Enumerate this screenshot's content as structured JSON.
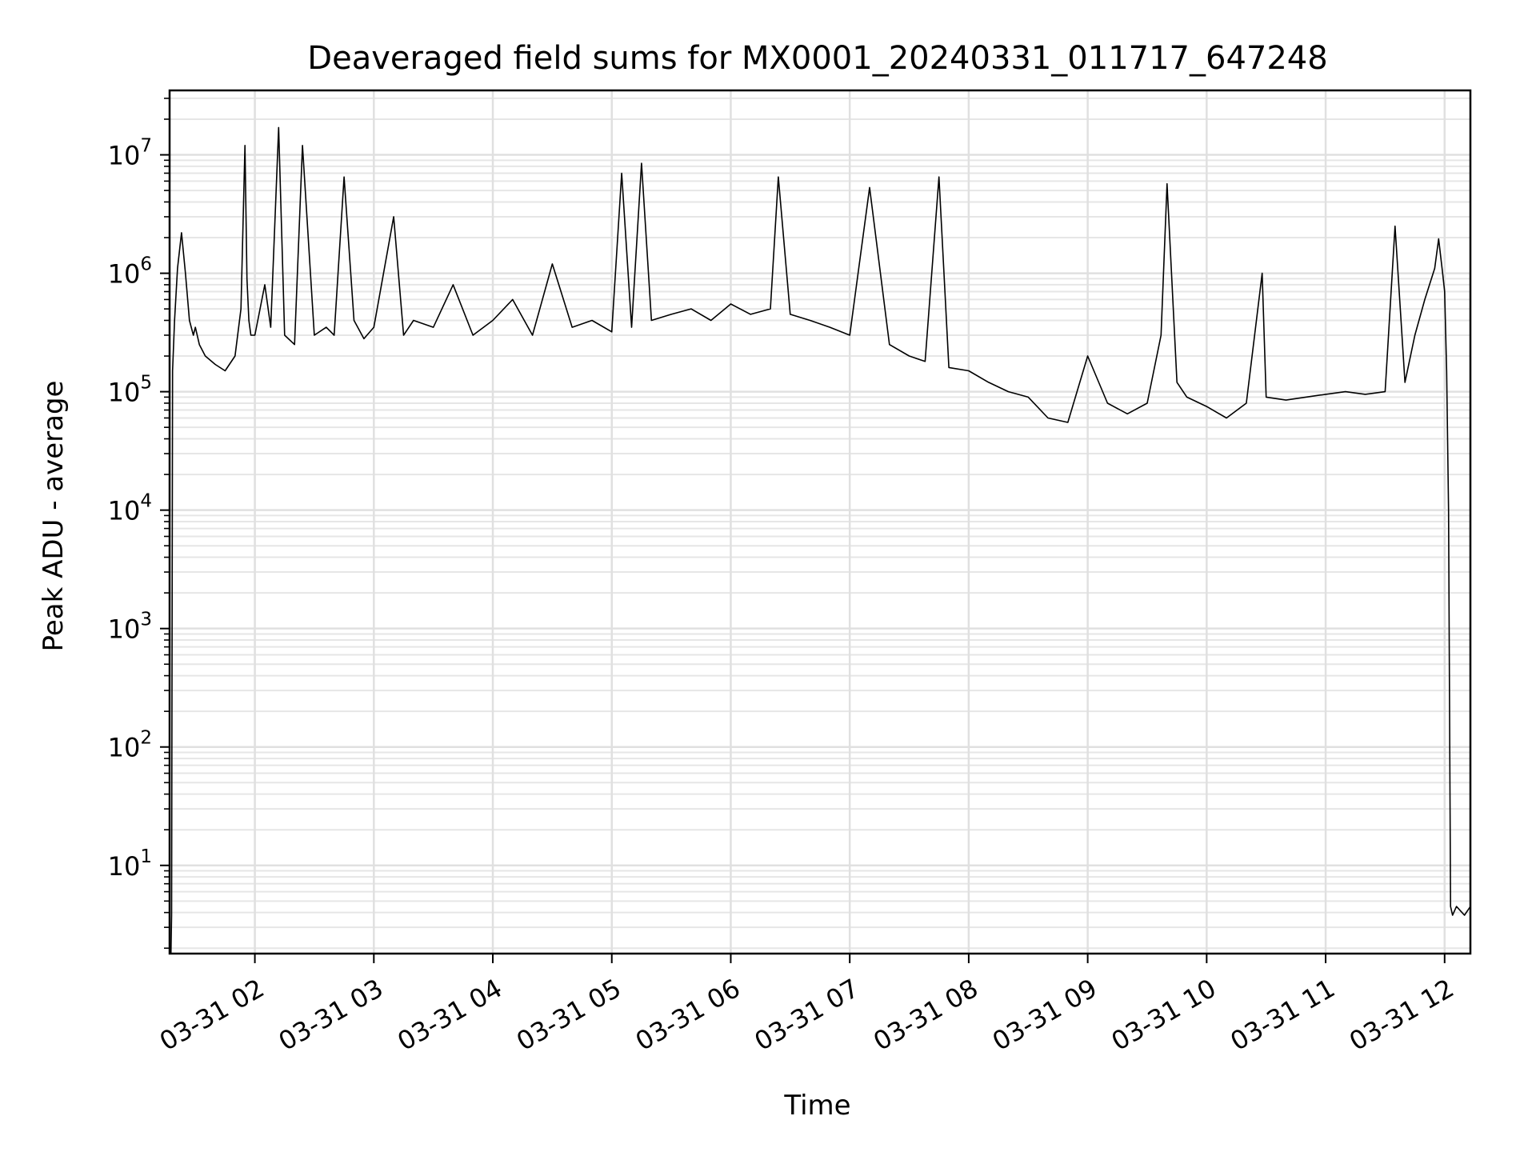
{
  "chart_data": {
    "type": "line",
    "title": "Deaveraged field sums for MX0001_20240331_011717_647248",
    "xlabel": "Time",
    "ylabel": "Peak ADU - average",
    "yscale": "log",
    "ylim": [
      1.8,
      35000000
    ],
    "xlim": [
      "2024-03-31T01:17:00",
      "2024-03-31T12:13:00"
    ],
    "grid": true,
    "line_color": "#000000",
    "x_ticks": [
      {
        "label": "03-31 02",
        "time": "2024-03-31T02:00:00"
      },
      {
        "label": "03-31 03",
        "time": "2024-03-31T03:00:00"
      },
      {
        "label": "03-31 04",
        "time": "2024-03-31T04:00:00"
      },
      {
        "label": "03-31 05",
        "time": "2024-03-31T05:00:00"
      },
      {
        "label": "03-31 06",
        "time": "2024-03-31T06:00:00"
      },
      {
        "label": "03-31 07",
        "time": "2024-03-31T07:00:00"
      },
      {
        "label": "03-31 08",
        "time": "2024-03-31T08:00:00"
      },
      {
        "label": "03-31 09",
        "time": "2024-03-31T09:00:00"
      },
      {
        "label": "03-31 10",
        "time": "2024-03-31T10:00:00"
      },
      {
        "label": "03-31 11",
        "time": "2024-03-31T11:00:00"
      },
      {
        "label": "03-31 12",
        "time": "2024-03-31T12:00:00"
      }
    ],
    "y_ticks": [
      {
        "base": "10",
        "exp": "1",
        "value": 10
      },
      {
        "base": "10",
        "exp": "2",
        "value": 100
      },
      {
        "base": "10",
        "exp": "3",
        "value": 1000
      },
      {
        "base": "10",
        "exp": "4",
        "value": 10000
      },
      {
        "base": "10",
        "exp": "5",
        "value": 100000
      },
      {
        "base": "10",
        "exp": "6",
        "value": 1000000
      },
      {
        "base": "10",
        "exp": "7",
        "value": 10000000
      }
    ],
    "series": [
      {
        "x": [
          "2024-03-31T01:17:40",
          "2024-03-31T01:18:00",
          "2024-03-31T01:18:30",
          "2024-03-31T01:19:30",
          "2024-03-31T01:21:00",
          "2024-03-31T01:23:00",
          "2024-03-31T01:25:00",
          "2024-03-31T01:27:00",
          "2024-03-31T01:29:00",
          "2024-03-31T01:30:00",
          "2024-03-31T01:32:00",
          "2024-03-31T01:35:00",
          "2024-03-31T01:40:00",
          "2024-03-31T01:45:00",
          "2024-03-31T01:50:00",
          "2024-03-31T01:53:00",
          "2024-03-31T01:55:00",
          "2024-03-31T01:56:00",
          "2024-03-31T01:57:00",
          "2024-03-31T01:58:00",
          "2024-03-31T02:00:00",
          "2024-03-31T02:05:00",
          "2024-03-31T02:08:00",
          "2024-03-31T02:12:00",
          "2024-03-31T02:15:00",
          "2024-03-31T02:20:00",
          "2024-03-31T02:24:00",
          "2024-03-31T02:30:00",
          "2024-03-31T02:36:00",
          "2024-03-31T02:40:00",
          "2024-03-31T02:45:00",
          "2024-03-31T02:50:00",
          "2024-03-31T02:55:00",
          "2024-03-31T03:00:00",
          "2024-03-31T03:10:00",
          "2024-03-31T03:15:00",
          "2024-03-31T03:20:00",
          "2024-03-31T03:30:00",
          "2024-03-31T03:40:00",
          "2024-03-31T03:50:00",
          "2024-03-31T04:00:00",
          "2024-03-31T04:10:00",
          "2024-03-31T04:20:00",
          "2024-03-31T04:30:00",
          "2024-03-31T04:40:00",
          "2024-03-31T04:50:00",
          "2024-03-31T05:00:00",
          "2024-03-31T05:05:00",
          "2024-03-31T05:10:00",
          "2024-03-31T05:15:00",
          "2024-03-31T05:20:00",
          "2024-03-31T05:30:00",
          "2024-03-31T05:40:00",
          "2024-03-31T05:50:00",
          "2024-03-31T06:00:00",
          "2024-03-31T06:10:00",
          "2024-03-31T06:20:00",
          "2024-03-31T06:24:00",
          "2024-03-31T06:30:00",
          "2024-03-31T06:40:00",
          "2024-03-31T06:50:00",
          "2024-03-31T07:00:00",
          "2024-03-31T07:10:00",
          "2024-03-31T07:20:00",
          "2024-03-31T07:30:00",
          "2024-03-31T07:38:00",
          "2024-03-31T07:45:00",
          "2024-03-31T07:50:00",
          "2024-03-31T08:00:00",
          "2024-03-31T08:10:00",
          "2024-03-31T08:20:00",
          "2024-03-31T08:30:00",
          "2024-03-31T08:40:00",
          "2024-03-31T08:50:00",
          "2024-03-31T09:00:00",
          "2024-03-31T09:10:00",
          "2024-03-31T09:20:00",
          "2024-03-31T09:30:00",
          "2024-03-31T09:37:00",
          "2024-03-31T09:40:00",
          "2024-03-31T09:45:00",
          "2024-03-31T09:50:00",
          "2024-03-31T10:00:00",
          "2024-03-31T10:10:00",
          "2024-03-31T10:20:00",
          "2024-03-31T10:28:00",
          "2024-03-31T10:30:00",
          "2024-03-31T10:40:00",
          "2024-03-31T10:50:00",
          "2024-03-31T11:00:00",
          "2024-03-31T11:10:00",
          "2024-03-31T11:20:00",
          "2024-03-31T11:30:00",
          "2024-03-31T11:35:00",
          "2024-03-31T11:40:00",
          "2024-03-31T11:45:00",
          "2024-03-31T11:50:00",
          "2024-03-31T11:55:00",
          "2024-03-31T11:57:00",
          "2024-03-31T11:59:00",
          "2024-03-31T12:00:00",
          "2024-03-31T12:01:00",
          "2024-03-31T12:02:00",
          "2024-03-31T12:03:00",
          "2024-03-31T12:04:00",
          "2024-03-31T12:06:00",
          "2024-03-31T12:10:00",
          "2024-03-31T12:13:00"
        ],
        "y": [
          1.8,
          3.8,
          150000,
          400000,
          1100000,
          2200000,
          1000000,
          400000,
          300000,
          350000,
          250000,
          200000,
          170000,
          150000,
          200000,
          500000,
          12000000,
          900000,
          400000,
          300000,
          300000,
          800000,
          350000,
          17000000,
          300000,
          250000,
          12000000,
          300000,
          350000,
          300000,
          6500000,
          400000,
          280000,
          350000,
          3000000,
          300000,
          400000,
          350000,
          800000,
          300000,
          400000,
          600000,
          300000,
          1200000,
          350000,
          400000,
          320000,
          7000000,
          350000,
          8500000,
          400000,
          450000,
          500000,
          400000,
          550000,
          450000,
          500000,
          6500000,
          450000,
          400000,
          350000,
          300000,
          5300000,
          250000,
          200000,
          180000,
          6500000,
          160000,
          150000,
          120000,
          100000,
          90000,
          60000,
          55000,
          200000,
          80000,
          65000,
          80000,
          300000,
          5700000,
          120000,
          90000,
          75000,
          60000,
          80000,
          1000000,
          90000,
          85000,
          90000,
          95000,
          100000,
          95000,
          100000,
          2500000,
          120000,
          300000,
          600000,
          1100000,
          1950000,
          1000000,
          700000,
          150000,
          10000,
          4.5,
          3.8,
          4.5,
          3.8,
          4.5
        ]
      }
    ]
  }
}
